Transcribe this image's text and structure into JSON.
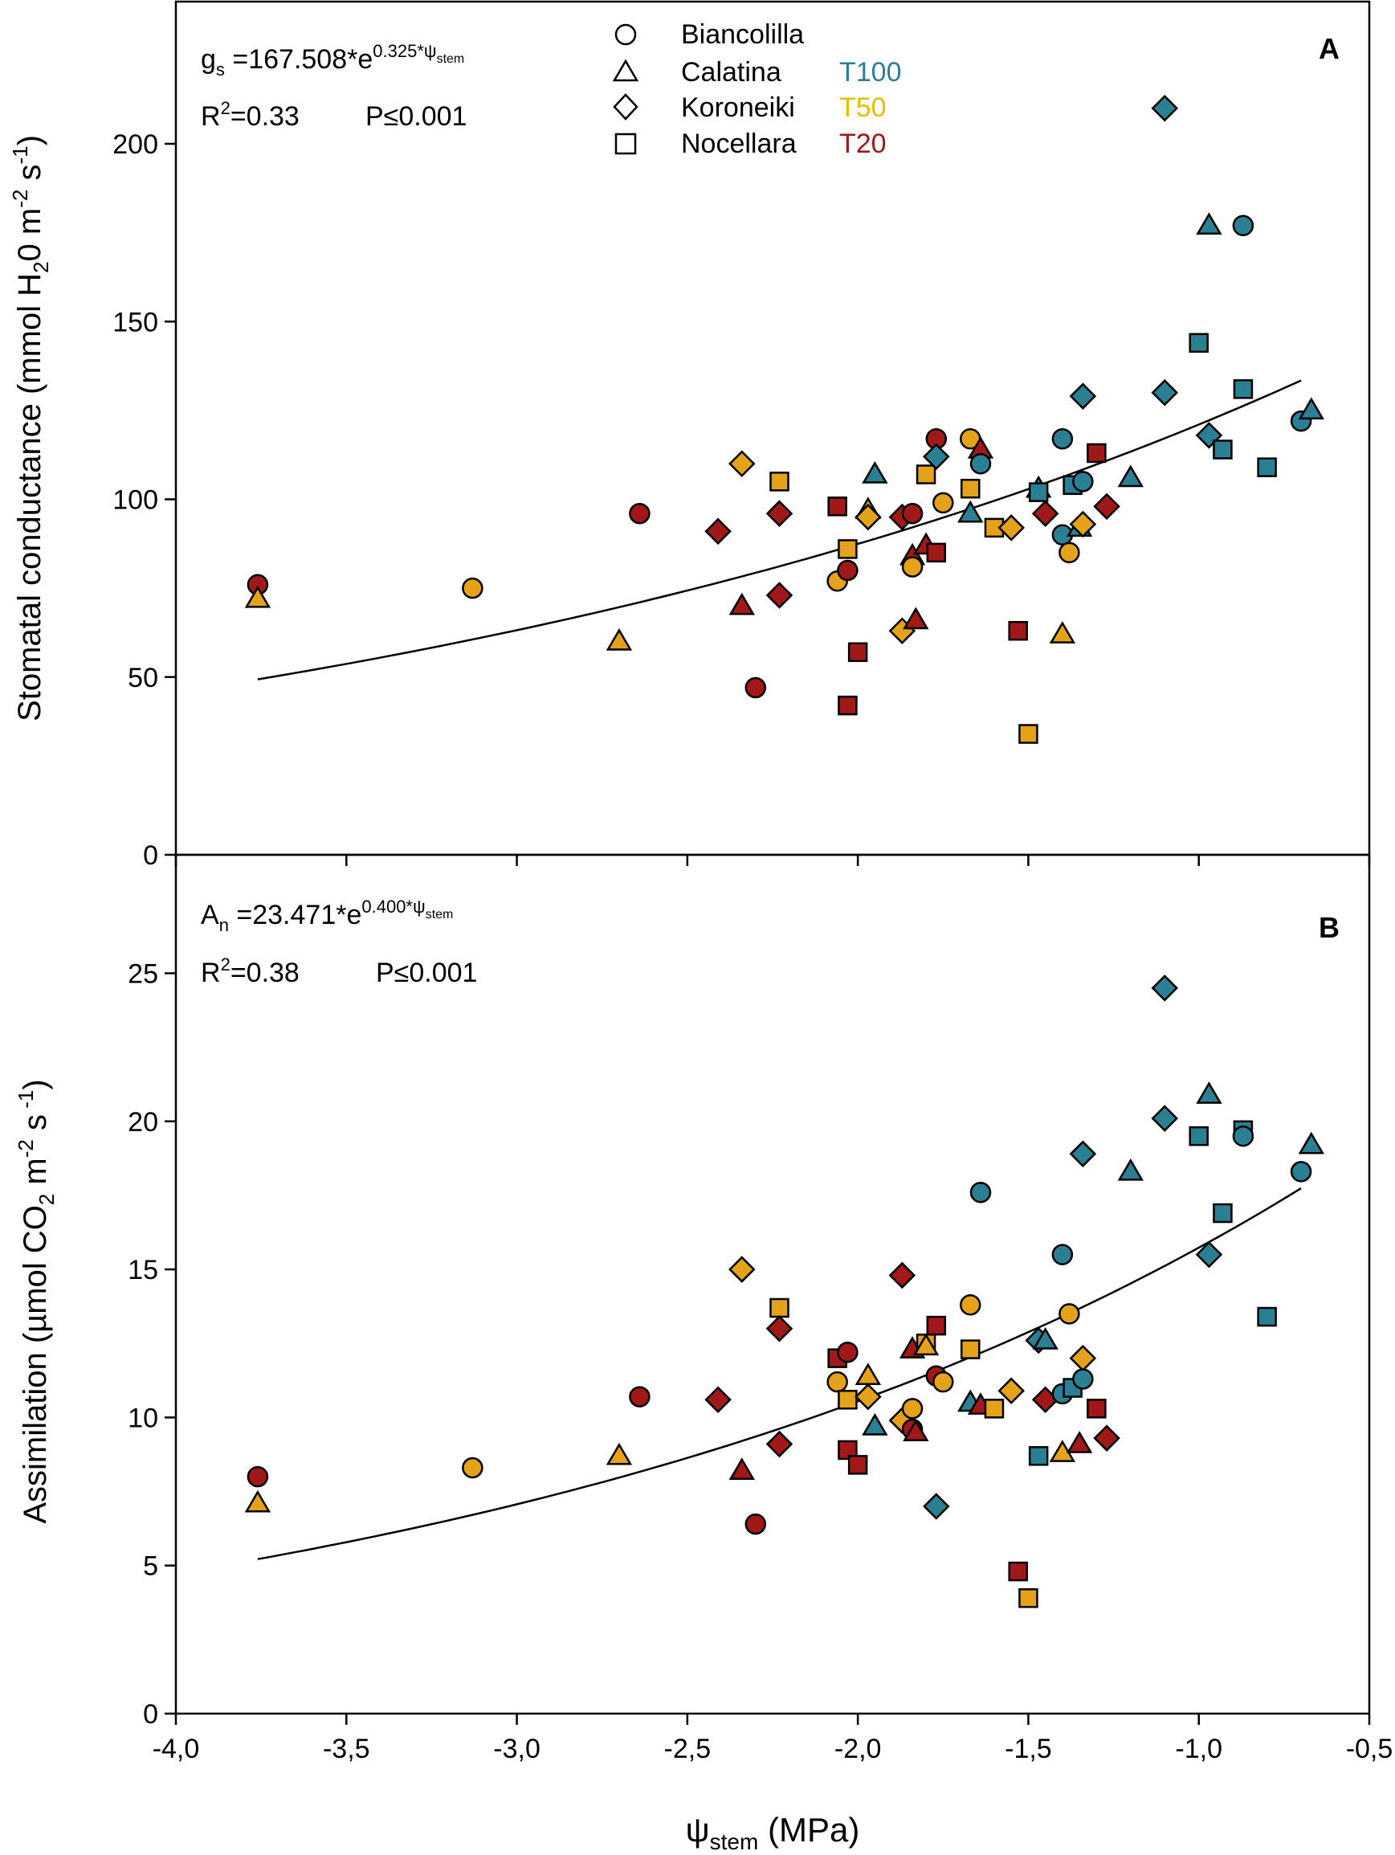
{
  "colors": {
    "T100": "#2A7F92",
    "T50": "#E3A21A",
    "T20": "#A01818",
    "axis": "#000000",
    "curve": "#000000"
  },
  "legend": {
    "cultivars": [
      {
        "name": "Biancolilla",
        "marker": "circle"
      },
      {
        "name": "Calatina",
        "marker": "triangle"
      },
      {
        "name": "Koroneiki",
        "marker": "diamond"
      },
      {
        "name": "Nocellara",
        "marker": "square"
      }
    ],
    "treatments": [
      {
        "name": "T100",
        "color_key": "T100"
      },
      {
        "name": "T50",
        "color_key": "T50"
      },
      {
        "name": "T20",
        "color_key": "T20"
      }
    ]
  },
  "chart_data": [
    {
      "type": "scatter",
      "panel": "A",
      "ylabel": "Stomatal conductance (mmol H2O m-2 s-1)",
      "ylabel_parts": {
        "main": "Stomatal conductance (mmol H",
        "sub1": "2",
        "mid": "0 m",
        "sup1": "-2",
        "mid2": " s",
        "sup2": "-1",
        "end": ")"
      },
      "xlim": [
        -4.0,
        -0.5
      ],
      "ylim": [
        0,
        240
      ],
      "yticks": [
        0,
        50,
        100,
        150,
        200
      ],
      "equation": {
        "lhs": "g",
        "lhs_sub": "s",
        "rhs": " =167.508*e",
        "exp": "0.325*ψ",
        "exp_sub": "stem"
      },
      "r2_label": "R",
      "r2_sup": "2",
      "r2_value": "=0.33",
      "p_label": "P≤0.001",
      "fit": {
        "a": 167.508,
        "b": 0.325,
        "x_range": [
          -3.76,
          -0.7
        ]
      },
      "points": [
        {
          "x": -3.76,
          "y": 76,
          "m": "circle",
          "t": "T20"
        },
        {
          "x": -3.76,
          "y": 72,
          "m": "triangle",
          "t": "T50"
        },
        {
          "x": -3.13,
          "y": 75,
          "m": "circle",
          "t": "T50"
        },
        {
          "x": -2.7,
          "y": 60,
          "m": "triangle",
          "t": "T50"
        },
        {
          "x": -2.64,
          "y": 96,
          "m": "circle",
          "t": "T20"
        },
        {
          "x": -2.41,
          "y": 91,
          "m": "diamond",
          "t": "T20"
        },
        {
          "x": -2.34,
          "y": 110,
          "m": "diamond",
          "t": "T50"
        },
        {
          "x": -2.34,
          "y": 70,
          "m": "triangle",
          "t": "T20"
        },
        {
          "x": -2.3,
          "y": 47,
          "m": "circle",
          "t": "T20"
        },
        {
          "x": -2.23,
          "y": 105,
          "m": "square",
          "t": "T50"
        },
        {
          "x": -2.23,
          "y": 96,
          "m": "diamond",
          "t": "T20"
        },
        {
          "x": -2.23,
          "y": 73,
          "m": "diamond",
          "t": "T20"
        },
        {
          "x": -2.06,
          "y": 98,
          "m": "square",
          "t": "T20"
        },
        {
          "x": -2.06,
          "y": 77,
          "m": "circle",
          "t": "T50"
        },
        {
          "x": -2.03,
          "y": 86,
          "m": "square",
          "t": "T50"
        },
        {
          "x": -2.03,
          "y": 80,
          "m": "circle",
          "t": "T20"
        },
        {
          "x": -2.03,
          "y": 42,
          "m": "square",
          "t": "T20"
        },
        {
          "x": -2.0,
          "y": 57,
          "m": "square",
          "t": "T20"
        },
        {
          "x": -1.97,
          "y": 97,
          "m": "triangle",
          "t": "T50"
        },
        {
          "x": -1.97,
          "y": 95,
          "m": "diamond",
          "t": "T50"
        },
        {
          "x": -1.95,
          "y": 107,
          "m": "triangle",
          "t": "T100"
        },
        {
          "x": -1.87,
          "y": 95,
          "m": "diamond",
          "t": "T20"
        },
        {
          "x": -1.87,
          "y": 63,
          "m": "diamond",
          "t": "T50"
        },
        {
          "x": -1.84,
          "y": 96,
          "m": "circle",
          "t": "T20"
        },
        {
          "x": -1.84,
          "y": 84,
          "m": "triangle",
          "t": "T20"
        },
        {
          "x": -1.84,
          "y": 81,
          "m": "circle",
          "t": "T50"
        },
        {
          "x": -1.83,
          "y": 66,
          "m": "triangle",
          "t": "T20"
        },
        {
          "x": -1.8,
          "y": 107,
          "m": "square",
          "t": "T50"
        },
        {
          "x": -1.8,
          "y": 87,
          "m": "triangle",
          "t": "T20"
        },
        {
          "x": -1.77,
          "y": 117,
          "m": "circle",
          "t": "T20"
        },
        {
          "x": -1.77,
          "y": 112,
          "m": "diamond",
          "t": "T100"
        },
        {
          "x": -1.77,
          "y": 85,
          "m": "square",
          "t": "T20"
        },
        {
          "x": -1.75,
          "y": 99,
          "m": "circle",
          "t": "T50"
        },
        {
          "x": -1.67,
          "y": 117,
          "m": "circle",
          "t": "T50"
        },
        {
          "x": -1.67,
          "y": 103,
          "m": "square",
          "t": "T50"
        },
        {
          "x": -1.67,
          "y": 96,
          "m": "triangle",
          "t": "T100"
        },
        {
          "x": -1.64,
          "y": 114,
          "m": "triangle",
          "t": "T20"
        },
        {
          "x": -1.64,
          "y": 110,
          "m": "circle",
          "t": "T100"
        },
        {
          "x": -1.6,
          "y": 92,
          "m": "square",
          "t": "T50"
        },
        {
          "x": -1.55,
          "y": 92,
          "m": "diamond",
          "t": "T50"
        },
        {
          "x": -1.53,
          "y": 63,
          "m": "square",
          "t": "T20"
        },
        {
          "x": -1.5,
          "y": 34,
          "m": "square",
          "t": "T50"
        },
        {
          "x": -1.47,
          "y": 103,
          "m": "triangle",
          "t": "T100"
        },
        {
          "x": -1.47,
          "y": 102,
          "m": "square",
          "t": "T100"
        },
        {
          "x": -1.45,
          "y": 96,
          "m": "diamond",
          "t": "T20"
        },
        {
          "x": -1.4,
          "y": 117,
          "m": "circle",
          "t": "T100"
        },
        {
          "x": -1.4,
          "y": 90,
          "m": "circle",
          "t": "T100"
        },
        {
          "x": -1.4,
          "y": 62,
          "m": "triangle",
          "t": "T50"
        },
        {
          "x": -1.38,
          "y": 85,
          "m": "circle",
          "t": "T50"
        },
        {
          "x": -1.37,
          "y": 104,
          "m": "square",
          "t": "T100"
        },
        {
          "x": -1.35,
          "y": 92,
          "m": "triangle",
          "t": "T100"
        },
        {
          "x": -1.34,
          "y": 129,
          "m": "diamond",
          "t": "T100"
        },
        {
          "x": -1.34,
          "y": 105,
          "m": "circle",
          "t": "T100"
        },
        {
          "x": -1.34,
          "y": 93,
          "m": "diamond",
          "t": "T50"
        },
        {
          "x": -1.3,
          "y": 113,
          "m": "square",
          "t": "T20"
        },
        {
          "x": -1.27,
          "y": 98,
          "m": "diamond",
          "t": "T20"
        },
        {
          "x": -1.2,
          "y": 106,
          "m": "triangle",
          "t": "T100"
        },
        {
          "x": -1.1,
          "y": 210,
          "m": "diamond",
          "t": "T100"
        },
        {
          "x": -1.1,
          "y": 130,
          "m": "diamond",
          "t": "T100"
        },
        {
          "x": -1.0,
          "y": 144,
          "m": "square",
          "t": "T100"
        },
        {
          "x": -0.97,
          "y": 177,
          "m": "triangle",
          "t": "T100"
        },
        {
          "x": -0.97,
          "y": 118,
          "m": "diamond",
          "t": "T100"
        },
        {
          "x": -0.93,
          "y": 114,
          "m": "square",
          "t": "T100"
        },
        {
          "x": -0.87,
          "y": 177,
          "m": "circle",
          "t": "T100"
        },
        {
          "x": -0.87,
          "y": 131,
          "m": "square",
          "t": "T100"
        },
        {
          "x": -0.8,
          "y": 109,
          "m": "square",
          "t": "T100"
        },
        {
          "x": -0.7,
          "y": 122,
          "m": "circle",
          "t": "T100"
        },
        {
          "x": -0.67,
          "y": 125,
          "m": "triangle",
          "t": "T100"
        }
      ]
    },
    {
      "type": "scatter",
      "panel": "B",
      "xlabel": "ψstem (MPa)",
      "xlabel_parts": {
        "main": "ψ",
        "sub": "stem",
        "rest": "  (MPa)"
      },
      "ylabel": "Assimilation (µmol CO2 m-2 s -1)",
      "ylabel_parts": {
        "main": "Assimilation (µmol CO",
        "sub1": "2",
        "mid": " m",
        "sup1": "-2",
        "mid2": " s",
        "sup2": " -1",
        "end": ")"
      },
      "xlim": [
        -4.0,
        -0.5
      ],
      "ylim": [
        0,
        29
      ],
      "xticks": [
        "-4,0",
        "-3,5",
        "-3,0",
        "-2,5",
        "-2,0",
        "-1,5",
        "-1,0",
        "-0,5"
      ],
      "xtick_values": [
        -4.0,
        -3.5,
        -3.0,
        -2.5,
        -2.0,
        -1.5,
        -1.0,
        -0.5
      ],
      "yticks": [
        0,
        5,
        10,
        15,
        20,
        25
      ],
      "equation": {
        "lhs": "A",
        "lhs_sub": "n",
        "rhs": " =23.471*e",
        "exp": "0.400*ψ",
        "exp_sub": "stem"
      },
      "r2_label": "R",
      "r2_sup": "2",
      "r2_value": "=0.38",
      "p_label": "P≤0.001",
      "fit": {
        "a": 23.471,
        "b": 0.4,
        "x_range": [
          -3.76,
          -0.7
        ]
      },
      "points": [
        {
          "x": -3.76,
          "y": 8.0,
          "m": "circle",
          "t": "T20"
        },
        {
          "x": -3.76,
          "y": 7.1,
          "m": "triangle",
          "t": "T50"
        },
        {
          "x": -3.13,
          "y": 8.3,
          "m": "circle",
          "t": "T50"
        },
        {
          "x": -2.7,
          "y": 8.7,
          "m": "triangle",
          "t": "T50"
        },
        {
          "x": -2.64,
          "y": 10.7,
          "m": "circle",
          "t": "T20"
        },
        {
          "x": -2.41,
          "y": 10.6,
          "m": "diamond",
          "t": "T20"
        },
        {
          "x": -2.34,
          "y": 15.0,
          "m": "diamond",
          "t": "T50"
        },
        {
          "x": -2.34,
          "y": 8.2,
          "m": "triangle",
          "t": "T20"
        },
        {
          "x": -2.3,
          "y": 6.4,
          "m": "circle",
          "t": "T20"
        },
        {
          "x": -2.23,
          "y": 13.7,
          "m": "square",
          "t": "T50"
        },
        {
          "x": -2.23,
          "y": 13.0,
          "m": "diamond",
          "t": "T20"
        },
        {
          "x": -2.23,
          "y": 9.1,
          "m": "diamond",
          "t": "T20"
        },
        {
          "x": -2.06,
          "y": 12.0,
          "m": "square",
          "t": "T20"
        },
        {
          "x": -2.06,
          "y": 11.2,
          "m": "circle",
          "t": "T50"
        },
        {
          "x": -2.03,
          "y": 12.2,
          "m": "circle",
          "t": "T20"
        },
        {
          "x": -2.03,
          "y": 10.6,
          "m": "square",
          "t": "T50"
        },
        {
          "x": -2.03,
          "y": 8.9,
          "m": "square",
          "t": "T20"
        },
        {
          "x": -2.0,
          "y": 8.4,
          "m": "square",
          "t": "T20"
        },
        {
          "x": -1.97,
          "y": 11.4,
          "m": "triangle",
          "t": "T50"
        },
        {
          "x": -1.97,
          "y": 10.7,
          "m": "diamond",
          "t": "T50"
        },
        {
          "x": -1.95,
          "y": 9.7,
          "m": "triangle",
          "t": "T100"
        },
        {
          "x": -1.87,
          "y": 14.8,
          "m": "diamond",
          "t": "T20"
        },
        {
          "x": -1.87,
          "y": 9.9,
          "m": "diamond",
          "t": "T50"
        },
        {
          "x": -1.84,
          "y": 12.3,
          "m": "triangle",
          "t": "T20"
        },
        {
          "x": -1.84,
          "y": 10.3,
          "m": "circle",
          "t": "T50"
        },
        {
          "x": -1.84,
          "y": 9.6,
          "m": "circle",
          "t": "T20"
        },
        {
          "x": -1.83,
          "y": 9.5,
          "m": "triangle",
          "t": "T20"
        },
        {
          "x": -1.8,
          "y": 12.5,
          "m": "square",
          "t": "T50"
        },
        {
          "x": -1.8,
          "y": 12.4,
          "m": "triangle",
          "t": "T50"
        },
        {
          "x": -1.77,
          "y": 13.1,
          "m": "square",
          "t": "T20"
        },
        {
          "x": -1.77,
          "y": 11.4,
          "m": "circle",
          "t": "T20"
        },
        {
          "x": -1.77,
          "y": 7.0,
          "m": "diamond",
          "t": "T100"
        },
        {
          "x": -1.75,
          "y": 11.2,
          "m": "circle",
          "t": "T50"
        },
        {
          "x": -1.67,
          "y": 13.8,
          "m": "circle",
          "t": "T50"
        },
        {
          "x": -1.67,
          "y": 12.3,
          "m": "square",
          "t": "T50"
        },
        {
          "x": -1.67,
          "y": 10.5,
          "m": "triangle",
          "t": "T100"
        },
        {
          "x": -1.64,
          "y": 17.6,
          "m": "circle",
          "t": "T100"
        },
        {
          "x": -1.64,
          "y": 10.4,
          "m": "triangle",
          "t": "T20"
        },
        {
          "x": -1.6,
          "y": 10.3,
          "m": "square",
          "t": "T50"
        },
        {
          "x": -1.55,
          "y": 10.9,
          "m": "diamond",
          "t": "T50"
        },
        {
          "x": -1.53,
          "y": 4.8,
          "m": "square",
          "t": "T20"
        },
        {
          "x": -1.5,
          "y": 3.9,
          "m": "square",
          "t": "T50"
        },
        {
          "x": -1.47,
          "y": 12.6,
          "m": "diamond",
          "t": "T100"
        },
        {
          "x": -1.47,
          "y": 8.7,
          "m": "square",
          "t": "T100"
        },
        {
          "x": -1.45,
          "y": 12.6,
          "m": "triangle",
          "t": "T100"
        },
        {
          "x": -1.45,
          "y": 10.6,
          "m": "diamond",
          "t": "T20"
        },
        {
          "x": -1.4,
          "y": 15.5,
          "m": "circle",
          "t": "T100"
        },
        {
          "x": -1.4,
          "y": 10.8,
          "m": "circle",
          "t": "T100"
        },
        {
          "x": -1.4,
          "y": 8.8,
          "m": "triangle",
          "t": "T50"
        },
        {
          "x": -1.38,
          "y": 13.5,
          "m": "circle",
          "t": "T50"
        },
        {
          "x": -1.37,
          "y": 11.0,
          "m": "square",
          "t": "T100"
        },
        {
          "x": -1.35,
          "y": 9.1,
          "m": "triangle",
          "t": "T20"
        },
        {
          "x": -1.34,
          "y": 18.9,
          "m": "diamond",
          "t": "T100"
        },
        {
          "x": -1.34,
          "y": 12.0,
          "m": "diamond",
          "t": "T50"
        },
        {
          "x": -1.34,
          "y": 11.3,
          "m": "circle",
          "t": "T100"
        },
        {
          "x": -1.3,
          "y": 10.3,
          "m": "square",
          "t": "T20"
        },
        {
          "x": -1.27,
          "y": 9.3,
          "m": "diamond",
          "t": "T20"
        },
        {
          "x": -1.2,
          "y": 18.3,
          "m": "triangle",
          "t": "T100"
        },
        {
          "x": -1.1,
          "y": 24.5,
          "m": "diamond",
          "t": "T100"
        },
        {
          "x": -1.1,
          "y": 20.1,
          "m": "diamond",
          "t": "T100"
        },
        {
          "x": -1.0,
          "y": 19.5,
          "m": "square",
          "t": "T100"
        },
        {
          "x": -0.97,
          "y": 20.9,
          "m": "triangle",
          "t": "T100"
        },
        {
          "x": -0.97,
          "y": 15.5,
          "m": "diamond",
          "t": "T100"
        },
        {
          "x": -0.93,
          "y": 16.9,
          "m": "square",
          "t": "T100"
        },
        {
          "x": -0.87,
          "y": 19.7,
          "m": "square",
          "t": "T100"
        },
        {
          "x": -0.87,
          "y": 19.5,
          "m": "circle",
          "t": "T100"
        },
        {
          "x": -0.8,
          "y": 13.4,
          "m": "square",
          "t": "T100"
        },
        {
          "x": -0.7,
          "y": 18.3,
          "m": "circle",
          "t": "T100"
        },
        {
          "x": -0.67,
          "y": 19.2,
          "m": "triangle",
          "t": "T100"
        }
      ]
    }
  ]
}
